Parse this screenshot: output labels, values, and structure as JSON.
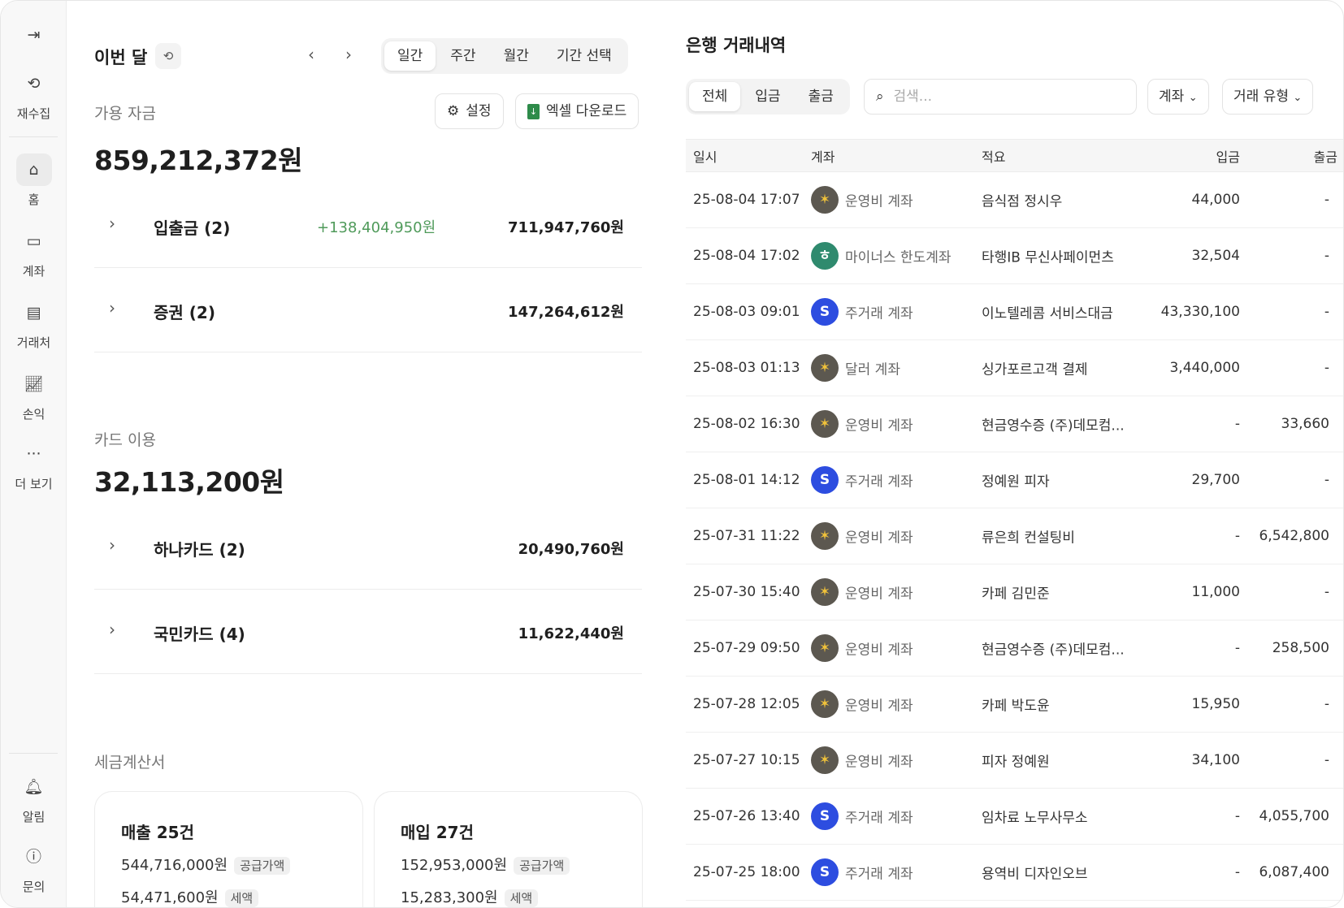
{
  "sidebar": {
    "items": [
      {
        "label": "재수집",
        "icon": "refresh-icon"
      },
      {
        "label": "홈",
        "icon": "home-icon",
        "active": true
      },
      {
        "label": "계좌",
        "icon": "card-icon"
      },
      {
        "label": "거래처",
        "icon": "building-icon"
      },
      {
        "label": "손익",
        "icon": "chart-icon"
      },
      {
        "label": "더 보기",
        "icon": "more-icon"
      }
    ],
    "bottom": [
      {
        "label": "알림",
        "icon": "bell-icon"
      },
      {
        "label": "문의",
        "icon": "help-icon"
      }
    ]
  },
  "period": {
    "title": "이번 달",
    "tabs": [
      "일간",
      "주간",
      "월간",
      "기간 선택"
    ],
    "active_tab": "일간"
  },
  "funds": {
    "title": "가용 자금",
    "settings_label": "설정",
    "excel_label": "엑셀 다운로드",
    "total": "859,212,372원",
    "rows": [
      {
        "label": "입출금 (2)",
        "change": "+138,404,950원",
        "amount": "711,947,760원"
      },
      {
        "label": "증권 (2)",
        "change": "",
        "amount": "147,264,612원"
      }
    ]
  },
  "cards": {
    "title": "카드 이용",
    "total": "32,113,200원",
    "rows": [
      {
        "label": "하나카드 (2)",
        "amount": "20,490,760원"
      },
      {
        "label": "국민카드 (4)",
        "amount": "11,622,440원"
      }
    ]
  },
  "tax": {
    "title": "세금계산서",
    "sales": {
      "title": "매출 25건",
      "supply": "544,716,000원",
      "supply_tag": "공급가액",
      "tax": "54,471,600원",
      "tax_tag": "세액"
    },
    "purchase": {
      "title": "매입 27건",
      "supply": "152,953,000원",
      "supply_tag": "공급가액",
      "tax": "15,283,300원",
      "tax_tag": "세액"
    }
  },
  "bank": {
    "title": "은행 거래내역",
    "filters": [
      "전체",
      "입금",
      "출금"
    ],
    "active_filter": "전체",
    "search_placeholder": "검색...",
    "account_dd": "계좌",
    "type_dd": "거래 유형",
    "columns": [
      "일시",
      "계좌",
      "적요",
      "입금",
      "출금"
    ],
    "colors": {
      "kb": "#5c5850",
      "hana": "#2f8a6e",
      "shinhan": "#2d4de0",
      "positive": "#4f9a5a"
    },
    "rows": [
      {
        "date": "25-08-04 17:07",
        "bank": "kb",
        "account": "운영비 계좌",
        "memo": "음식점 정시우",
        "in": "44,000",
        "out": "-"
      },
      {
        "date": "25-08-04 17:02",
        "bank": "hana",
        "account": "마이너스 한도계좌",
        "memo": "타행IB 무신사페이먼츠",
        "in": "32,504",
        "out": "-"
      },
      {
        "date": "25-08-03 09:01",
        "bank": "shinhan",
        "account": "주거래 계좌",
        "memo": "이노텔레콤 서비스대금",
        "in": "43,330,100",
        "out": "-"
      },
      {
        "date": "25-08-03 01:13",
        "bank": "kb",
        "account": "달러 계좌",
        "memo": "싱가포르고객 결제",
        "in": "3,440,000",
        "out": "-"
      },
      {
        "date": "25-08-02 16:30",
        "bank": "kb",
        "account": "운영비 계좌",
        "memo": "현금영수증 (주)데모컴...",
        "in": "-",
        "out": "33,660"
      },
      {
        "date": "25-08-01 14:12",
        "bank": "shinhan",
        "account": "주거래 계좌",
        "memo": "정예원 피자",
        "in": "29,700",
        "out": "-"
      },
      {
        "date": "25-07-31 11:22",
        "bank": "kb",
        "account": "운영비 계좌",
        "memo": "류은희 컨설팅비",
        "in": "-",
        "out": "6,542,800"
      },
      {
        "date": "25-07-30 15:40",
        "bank": "kb",
        "account": "운영비 계좌",
        "memo": "카페 김민준",
        "in": "11,000",
        "out": "-"
      },
      {
        "date": "25-07-29 09:50",
        "bank": "kb",
        "account": "운영비 계좌",
        "memo": "현금영수증 (주)데모컴...",
        "in": "-",
        "out": "258,500"
      },
      {
        "date": "25-07-28 12:05",
        "bank": "kb",
        "account": "운영비 계좌",
        "memo": "카페 박도윤",
        "in": "15,950",
        "out": "-"
      },
      {
        "date": "25-07-27 10:15",
        "bank": "kb",
        "account": "운영비 계좌",
        "memo": "피자 정예원",
        "in": "34,100",
        "out": "-"
      },
      {
        "date": "25-07-26 13:40",
        "bank": "shinhan",
        "account": "주거래 계좌",
        "memo": "임차료 노무사무소",
        "in": "-",
        "out": "4,055,700"
      },
      {
        "date": "25-07-25 18:00",
        "bank": "shinhan",
        "account": "주거래 계좌",
        "memo": "용역비 디자인오브",
        "in": "-",
        "out": "6,087,400"
      }
    ]
  }
}
